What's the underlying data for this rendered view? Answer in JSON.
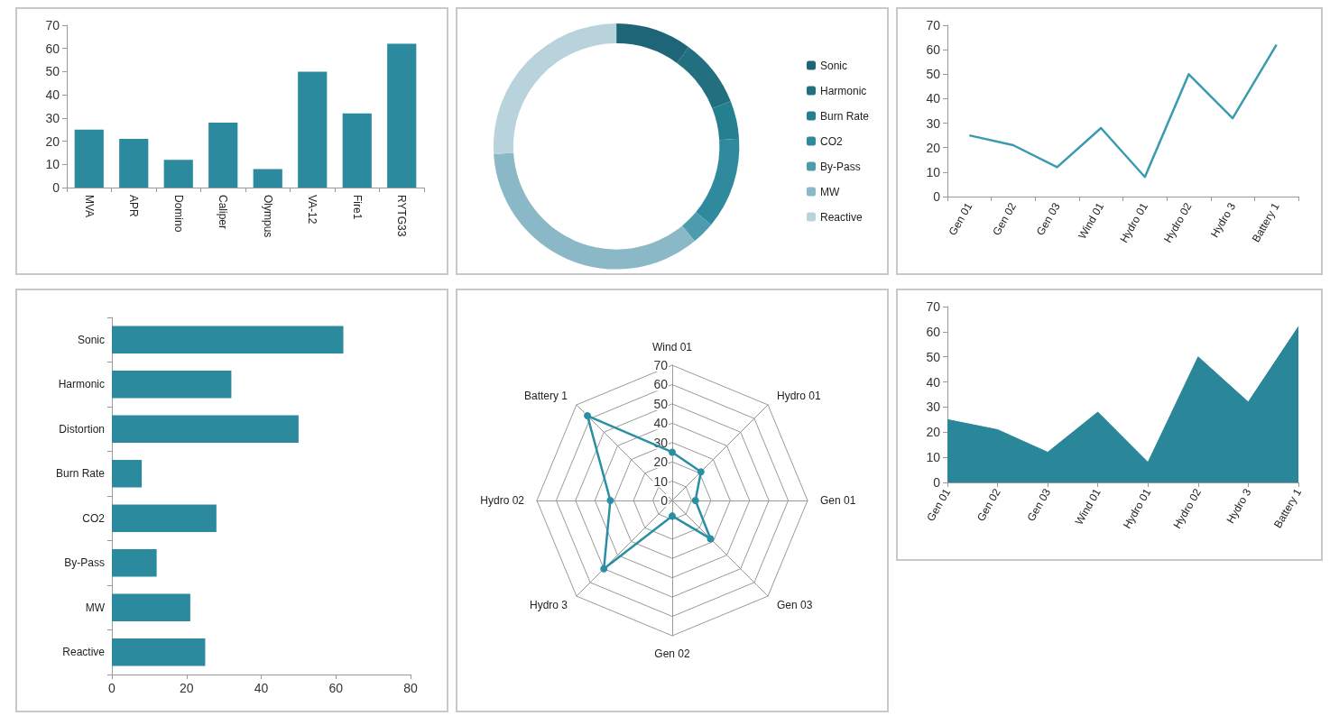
{
  "chart_data": [
    {
      "type": "bar",
      "categories": [
        "MVA",
        "APR",
        "Domino",
        "Caliper",
        "Olympus",
        "VA-12",
        "Fire1",
        "RYTG33"
      ],
      "values": [
        25,
        21,
        12,
        28,
        8,
        50,
        32,
        62
      ],
      "color": "#2b8a9e",
      "ylim": [
        0,
        70
      ],
      "yticks": [
        0,
        10,
        20,
        30,
        40,
        50,
        60,
        70
      ]
    },
    {
      "type": "donut",
      "categories": [
        "Sonic",
        "Harmonic",
        "Burn Rate",
        "CO2",
        "By-Pass",
        "MW",
        "Reactive"
      ],
      "values": [
        10,
        9,
        5,
        12,
        3,
        35,
        26
      ],
      "colors": [
        "#1d6577",
        "#22707f",
        "#247f8f",
        "#2e8a9c",
        "#4d9cad",
        "#8ab8c6",
        "#b9d3dc"
      ],
      "legend": "right"
    },
    {
      "type": "line",
      "categories": [
        "Gen 01",
        "Gen 02",
        "Gen 03",
        "Wind 01",
        "Hydro 01",
        "Hydro 02",
        "Hydro 3",
        "Battery 1"
      ],
      "values": [
        25,
        21,
        12,
        28,
        8,
        50,
        32,
        62
      ],
      "color": "#3a9bb0",
      "ylim": [
        0,
        70
      ],
      "yticks": [
        0,
        10,
        20,
        30,
        40,
        50,
        60,
        70
      ]
    },
    {
      "type": "bar",
      "orientation": "horizontal",
      "categories": [
        "Sonic",
        "Harmonic",
        "Distortion",
        "Burn Rate",
        "CO2",
        "By-Pass",
        "MW",
        "Reactive"
      ],
      "values": [
        62,
        32,
        50,
        8,
        28,
        12,
        21,
        25
      ],
      "color": "#2b8a9e",
      "xlim": [
        0,
        80
      ],
      "xticks": [
        0,
        20,
        40,
        60,
        80
      ]
    },
    {
      "type": "radar",
      "categories": [
        "Wind 01",
        "Hydro 01",
        "Gen 01",
        "Gen 03",
        "Gen 02",
        "Hydro 3",
        "Hydro 02",
        "Battery 1"
      ],
      "values": [
        25,
        21,
        12,
        28,
        8,
        50,
        32,
        62
      ],
      "color": "#2b8fa3",
      "ylim": [
        0,
        70
      ],
      "yticks": [
        0,
        10,
        20,
        30,
        40,
        50,
        60,
        70
      ],
      "marker": "circle"
    },
    {
      "type": "area",
      "categories": [
        "Gen 01",
        "Gen 02",
        "Gen 03",
        "Wind 01",
        "Hydro 01",
        "Hydro 02",
        "Hydro 3",
        "Battery 1"
      ],
      "values": [
        25,
        21,
        12,
        28,
        8,
        50,
        32,
        62
      ],
      "color": "#2a8699",
      "ylim": [
        0,
        70
      ],
      "yticks": [
        0,
        10,
        20,
        30,
        40,
        50,
        60,
        70
      ]
    }
  ]
}
